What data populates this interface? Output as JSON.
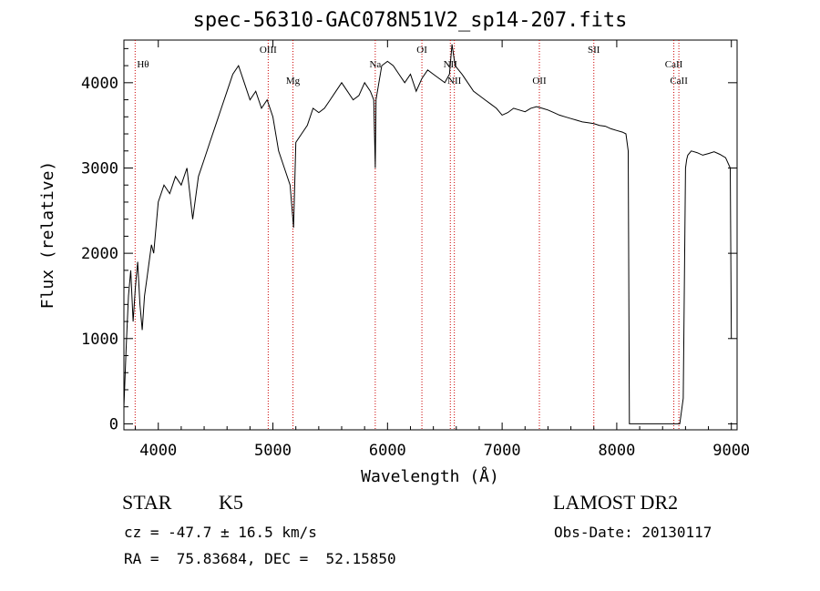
{
  "chart_data": {
    "type": "line",
    "title": "spec-56310-GAC078N51V2_sp14-207.fits",
    "xlabel": "Wavelength (Å)",
    "ylabel": "Flux (relative)",
    "xlim": [
      3700,
      9050
    ],
    "ylim": [
      -70,
      4500
    ],
    "xticks": [
      4000,
      5000,
      6000,
      7000,
      8000,
      9000
    ],
    "yticks": [
      0,
      1000,
      2000,
      3000,
      4000
    ],
    "x_tick_labels": [
      "4000",
      "5000",
      "6000",
      "7000",
      "8000",
      "9000"
    ],
    "y_tick_labels": [
      "0",
      "1000",
      "2000",
      "3000",
      "4000"
    ],
    "grid": false,
    "line_color": "#000000",
    "marker_color": "#cc0000",
    "series": [
      {
        "x": [
          3700,
          3720,
          3740,
          3760,
          3780,
          3800,
          3820,
          3840,
          3860,
          3880,
          3900,
          3920,
          3940,
          3960,
          3980,
          4000,
          4050,
          4100,
          4150,
          4200,
          4250,
          4300,
          4350,
          4400,
          4450,
          4500,
          4550,
          4600,
          4650,
          4700,
          4750,
          4800,
          4850,
          4900,
          4950,
          5000,
          5050,
          5100,
          5150,
          5180,
          5200,
          5250,
          5300,
          5350,
          5400,
          5450,
          5500,
          5550,
          5600,
          5650,
          5700,
          5750,
          5800,
          5850,
          5880,
          5893,
          5900,
          5950,
          6000,
          6050,
          6100,
          6150,
          6200,
          6250,
          6300,
          6350,
          6400,
          6450,
          6500,
          6540,
          6563,
          6590,
          6650,
          6700,
          6750,
          6800,
          6850,
          6900,
          6950,
          7000,
          7050,
          7100,
          7150,
          7200,
          7250,
          7300,
          7350,
          7400,
          7450,
          7500,
          7550,
          7600,
          7650,
          7700,
          7750,
          7800,
          7850,
          7900,
          7950,
          8000,
          8050,
          8080,
          8100,
          8110,
          8150,
          8200,
          8250,
          8300,
          8350,
          8400,
          8450,
          8500,
          8550,
          8580,
          8600,
          8610,
          8620,
          8650,
          8700,
          8750,
          8800,
          8850,
          8900,
          8950,
          8990,
          9000
        ],
        "y": [
          200,
          900,
          1500,
          1800,
          1200,
          1600,
          1900,
          1400,
          1100,
          1500,
          1700,
          1900,
          2100,
          2000,
          2300,
          2600,
          2800,
          2700,
          2900,
          2800,
          3000,
          2400,
          2900,
          3100,
          3300,
          3500,
          3700,
          3900,
          4100,
          4200,
          4000,
          3800,
          3900,
          3700,
          3800,
          3600,
          3200,
          3000,
          2800,
          2300,
          3300,
          3400,
          3500,
          3700,
          3650,
          3700,
          3800,
          3900,
          4000,
          3900,
          3800,
          3850,
          4000,
          3900,
          3800,
          3000,
          3800,
          4200,
          4250,
          4200,
          4100,
          4000,
          4100,
          3900,
          4050,
          4150,
          4100,
          4050,
          4000,
          4100,
          4450,
          4200,
          4100,
          4000,
          3900,
          3850,
          3800,
          3750,
          3700,
          3620,
          3650,
          3700,
          3680,
          3660,
          3700,
          3720,
          3700,
          3680,
          3650,
          3620,
          3600,
          3580,
          3560,
          3540,
          3530,
          3520,
          3500,
          3490,
          3460,
          3440,
          3420,
          3400,
          3200,
          0,
          0,
          0,
          0,
          0,
          0,
          0,
          0,
          0,
          0,
          300,
          3000,
          3100,
          3150,
          3200,
          3180,
          3150,
          3170,
          3190,
          3160,
          3120,
          3000,
          1000
        ]
      }
    ],
    "lines": [
      {
        "label": "Hθ",
        "x": 3798
      },
      {
        "label": "OIII",
        "x": 4959
      },
      {
        "label": "Mg",
        "x": 5175
      },
      {
        "label": "Na",
        "x": 5893
      },
      {
        "label": "OI",
        "x": 6300
      },
      {
        "label": "NII",
        "x": 6548
      },
      {
        "label": "NII",
        "x": 6583
      },
      {
        "label": "OII",
        "x": 7325
      },
      {
        "label": "SII",
        "x": 7800
      },
      {
        "label": "CaII",
        "x": 8498
      },
      {
        "label": "CaII",
        "x": 8542
      }
    ]
  },
  "info": {
    "object_type": "STAR",
    "subclass": "K5",
    "survey": "LAMOST DR2",
    "cz": "cz = -47.7 ± 16.5 km/s",
    "obs_date": "Obs-Date: 20130117",
    "coords": "RA =  75.83684, DEC =  52.15850"
  }
}
